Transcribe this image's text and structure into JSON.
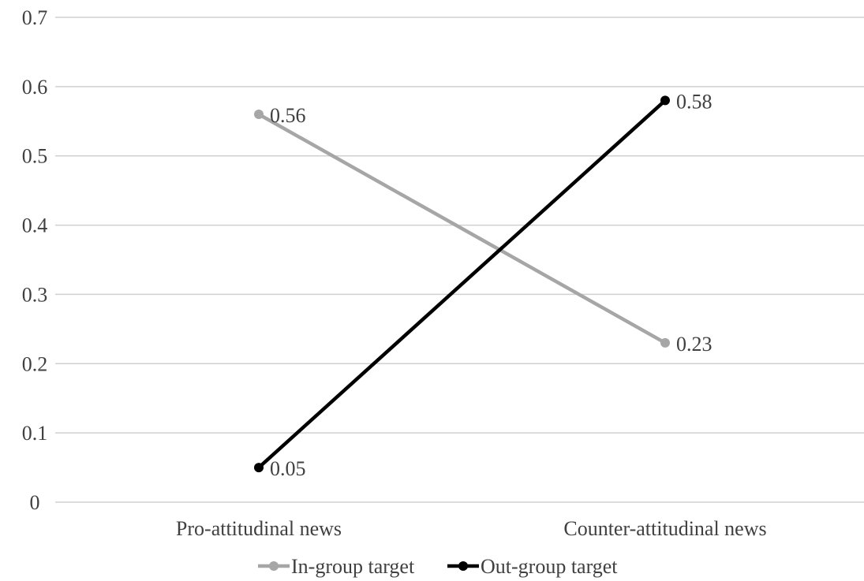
{
  "chart_data": {
    "type": "line",
    "categories": [
      "Pro-attitudinal news",
      "Counter-attitudinal news"
    ],
    "series": [
      {
        "name": "In-group target",
        "values": [
          0.56,
          0.23
        ],
        "labels": [
          "0.56",
          "0.23"
        ],
        "color": "#a6a6a6"
      },
      {
        "name": "Out-group target",
        "values": [
          0.05,
          0.58
        ],
        "labels": [
          "0.05",
          "0.58"
        ],
        "color": "#000000"
      }
    ],
    "ylim": [
      0,
      0.7
    ],
    "yticks": [
      0,
      0.1,
      0.2,
      0.3,
      0.4,
      0.5,
      0.6,
      0.7
    ],
    "ytick_labels": [
      "0",
      "0.1",
      "0.2",
      "0.3",
      "0.4",
      "0.5",
      "0.6",
      "0.7"
    ],
    "grid": true,
    "legend_position": "bottom"
  }
}
